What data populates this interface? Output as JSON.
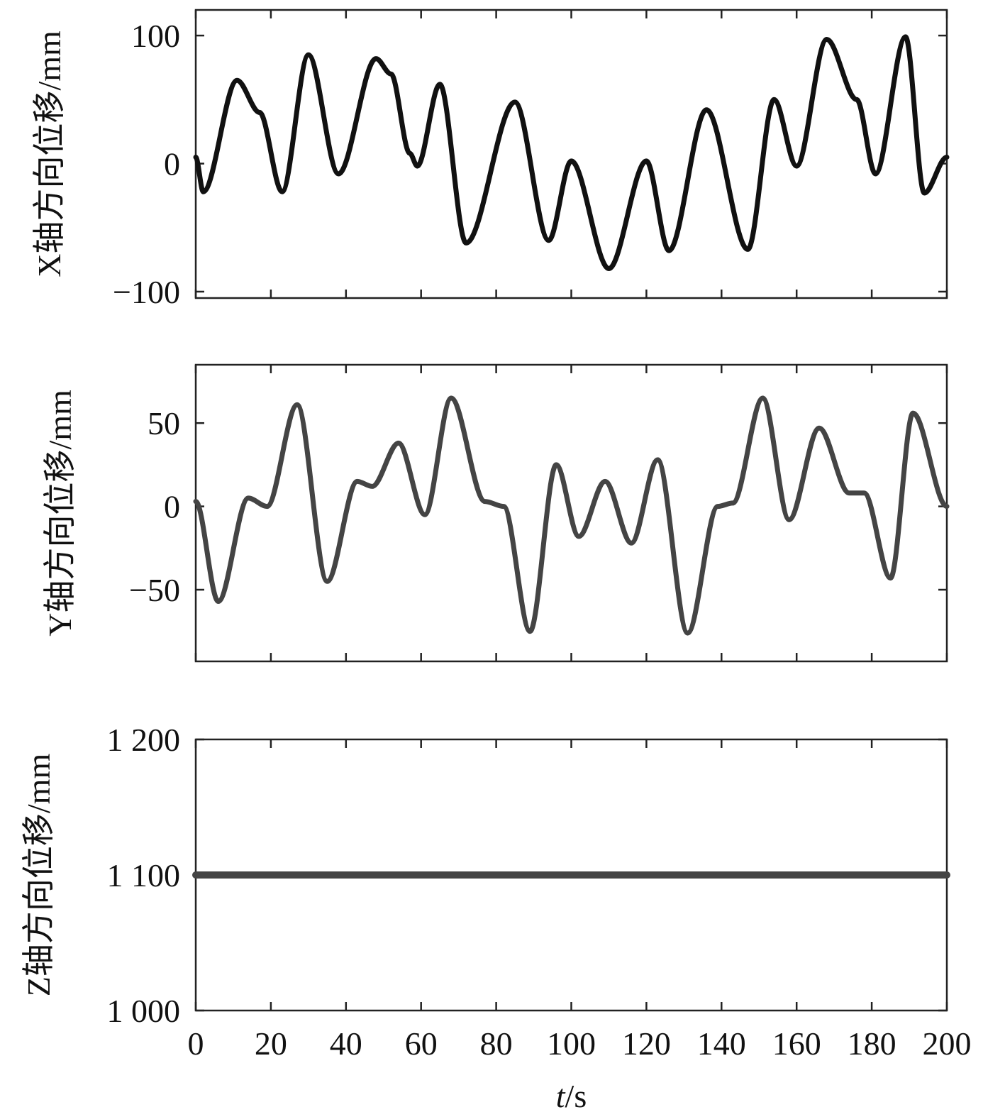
{
  "chart_data": [
    {
      "type": "line",
      "ylabel": "X轴方向位移/mm",
      "ylim": [
        -105,
        120
      ],
      "xlim": [
        0,
        200
      ],
      "yticks": [
        -100,
        0,
        100
      ],
      "ytick_labels": [
        "−100",
        "0",
        "100"
      ],
      "xticks": [
        0,
        20,
        40,
        60,
        80,
        100,
        120,
        140,
        160,
        180,
        200
      ],
      "grid": false,
      "color": "#111111",
      "series": [
        {
          "x": [
            0,
            2,
            11,
            17,
            23,
            30,
            38,
            48,
            52,
            57,
            59,
            65,
            72,
            85,
            94,
            100,
            110,
            120,
            126,
            136,
            147,
            154,
            160,
            168,
            176,
            181,
            189,
            194,
            200
          ],
          "y": [
            5,
            -22,
            65,
            40,
            -22,
            85,
            -8,
            82,
            70,
            8,
            -2,
            62,
            -62,
            48,
            -60,
            2,
            -82,
            2,
            -68,
            42,
            -67,
            50,
            -2,
            97,
            50,
            -8,
            99,
            -23,
            5
          ]
        }
      ]
    },
    {
      "type": "line",
      "ylabel": "Y轴方向位移/mm",
      "ylim": [
        -93,
        85
      ],
      "xlim": [
        0,
        200
      ],
      "yticks": [
        -50,
        0,
        50
      ],
      "ytick_labels": [
        "−50",
        "0",
        "50"
      ],
      "xticks": [
        0,
        20,
        40,
        60,
        80,
        100,
        120,
        140,
        160,
        180,
        200
      ],
      "grid": false,
      "color": "#444444",
      "series": [
        {
          "x": [
            0,
            6,
            14,
            19,
            27,
            35,
            43,
            47,
            54,
            61,
            68,
            77,
            82,
            89,
            96,
            102,
            109,
            116,
            123,
            131,
            139,
            143,
            151,
            158,
            166,
            174,
            178,
            185,
            191,
            200
          ],
          "y": [
            3,
            -57,
            5,
            0,
            61,
            -45,
            15,
            12,
            38,
            -5,
            65,
            3,
            0,
            -75,
            25,
            -18,
            15,
            -22,
            28,
            -76,
            0,
            2,
            65,
            -8,
            47,
            8,
            8,
            -43,
            56,
            0
          ]
        }
      ]
    },
    {
      "type": "line",
      "ylabel": "Z轴方向位移/mm",
      "ylim": [
        1000,
        1200
      ],
      "xlim": [
        0,
        200
      ],
      "yticks": [
        1000,
        1100,
        1200
      ],
      "ytick_labels": [
        "1 000",
        "1 100",
        "1 200"
      ],
      "xticks": [
        0,
        20,
        40,
        60,
        80,
        100,
        120,
        140,
        160,
        180,
        200
      ],
      "xtick_labels": [
        "0",
        "20",
        "40",
        "60",
        "80",
        "100",
        "120",
        "140",
        "160",
        "180",
        "200"
      ],
      "xlabel_italic": "t",
      "xlabel_rest": "/s",
      "grid": false,
      "color": "#444444",
      "series": [
        {
          "x": [
            0,
            200
          ],
          "y": [
            1100,
            1100
          ]
        }
      ]
    }
  ]
}
